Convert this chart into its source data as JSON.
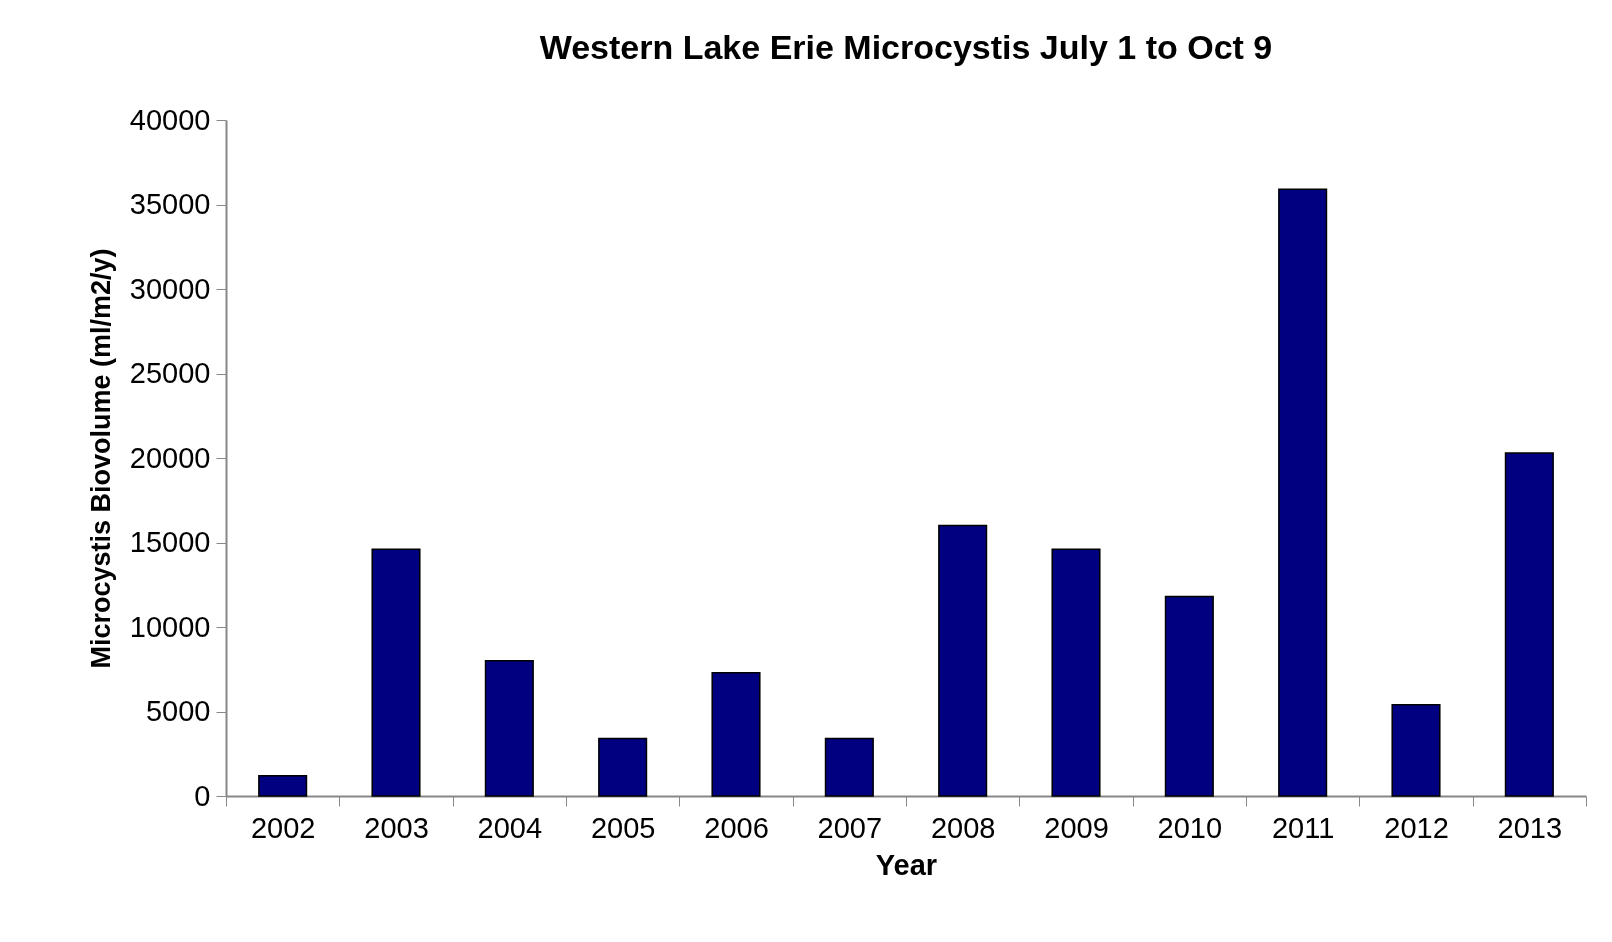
{
  "chart_data": {
    "type": "bar",
    "title": "Western Lake Erie Microcystis July 1 to Oct 9",
    "xlabel": "Year",
    "ylabel": "Microcystis Biovolume  (ml/m2/y)",
    "categories": [
      "2002",
      "2003",
      "2004",
      "2005",
      "2006",
      "2007",
      "2008",
      "2009",
      "2010",
      "2011",
      "2012",
      "2013"
    ],
    "values": [
      1200,
      14600,
      8000,
      3400,
      7300,
      3400,
      16000,
      14600,
      11800,
      35900,
      5400,
      20300
    ],
    "color": "#000080",
    "ylim": [
      0,
      40000
    ],
    "yticks": [
      0,
      5000,
      10000,
      15000,
      20000,
      25000,
      30000,
      35000,
      40000
    ]
  }
}
